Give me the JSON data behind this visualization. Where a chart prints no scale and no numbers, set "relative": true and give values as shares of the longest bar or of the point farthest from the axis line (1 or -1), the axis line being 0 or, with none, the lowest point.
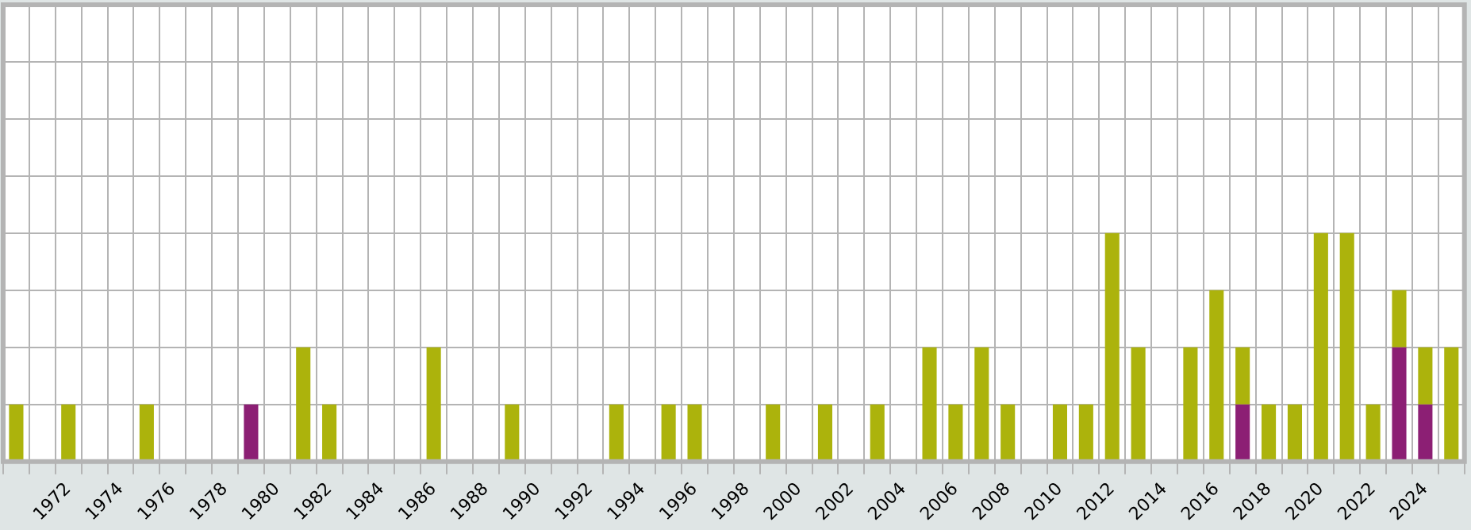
{
  "chart_data": {
    "type": "bar",
    "stacked": true,
    "relative": true,
    "grid": true,
    "legend": false,
    "categories": [
      null,
      null,
      "1972",
      null,
      "1974",
      null,
      "1976",
      null,
      "1978",
      null,
      "1980",
      null,
      "1982",
      null,
      "1984",
      null,
      "1986",
      null,
      "1988",
      null,
      "1990",
      null,
      "1992",
      null,
      "1994",
      null,
      "1996",
      null,
      "1998",
      null,
      "2000",
      null,
      "2002",
      null,
      "2004",
      null,
      "2006",
      null,
      "2008",
      null,
      "2010",
      null,
      "2012",
      null,
      "2014",
      null,
      "2016",
      null,
      "2018",
      null,
      "2020",
      null,
      "2022",
      null,
      "2024",
      null
    ],
    "series": [
      {
        "color": "#8c1f74",
        "values": [
          0,
          0,
          0,
          0,
          0,
          0,
          0,
          0,
          0,
          0.25,
          0,
          0,
          0,
          0,
          0,
          0,
          0,
          0,
          0,
          0,
          0,
          0,
          0,
          0,
          0,
          0,
          0,
          0,
          0,
          0,
          0,
          0,
          0,
          0,
          0,
          0,
          0,
          0,
          0,
          0,
          0,
          0,
          0,
          0,
          0,
          0,
          0,
          0.25,
          0,
          0,
          0,
          0,
          0,
          0.5,
          0.25,
          0
        ]
      },
      {
        "color": "#acb30c",
        "values": [
          0.25,
          0,
          0.25,
          0,
          0,
          0.25,
          0,
          0,
          0,
          0,
          0,
          0.5,
          0.25,
          0,
          0,
          0,
          0.5,
          0,
          0,
          0.25,
          0,
          0,
          0,
          0.25,
          0,
          0.25,
          0.25,
          0,
          0,
          0.25,
          0,
          0.25,
          0,
          0.25,
          0,
          0.5,
          0.25,
          0.5,
          0.25,
          0,
          0.25,
          0.25,
          1,
          0.5,
          0,
          0.5,
          0.75,
          0.25,
          0.25,
          0.25,
          1,
          1,
          0.25,
          0.25,
          0.25,
          0.5
        ]
      }
    ]
  }
}
